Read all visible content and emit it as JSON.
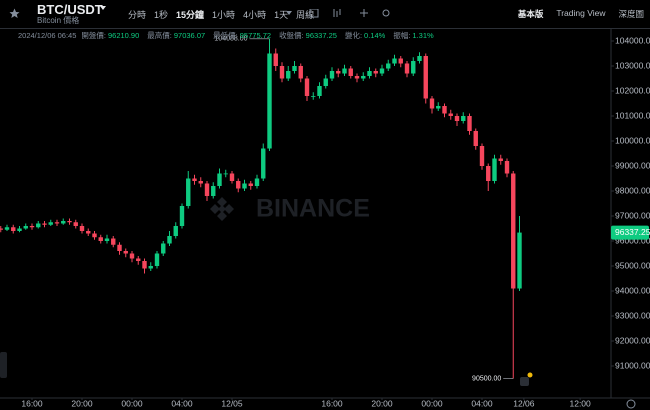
{
  "header": {
    "symbol": "BTC/USDT",
    "subtitle": "Bitcoin 價格",
    "intervals": [
      "分時",
      "1秒",
      "15分鐘",
      "1小時",
      "4小時",
      "1天",
      "周線"
    ],
    "views": [
      "基本版",
      "Trading View",
      "深度圖"
    ]
  },
  "info": {
    "datetime": "2024/12/06 06:45",
    "fields": [
      {
        "label": "開盤價:",
        "value": "96210.90"
      },
      {
        "label": "最高價:",
        "value": "97036.07"
      },
      {
        "label": "最低價:",
        "value": "95775.72"
      },
      {
        "label": "收盤價:",
        "value": "96337.25"
      },
      {
        "label": "變化:",
        "value": "0.14%"
      },
      {
        "label": "振幅:",
        "value": "1.31%"
      }
    ]
  },
  "chart_data": {
    "type": "candlestick",
    "up_color": "#0ecb81",
    "down_color": "#f6465d",
    "watermark": "BINANCE",
    "xlim": [
      -0.12,
      97.48
    ],
    "xticks": [
      {
        "value": 5,
        "label": "16:00"
      },
      {
        "value": 13,
        "label": "20:00"
      },
      {
        "value": 21,
        "label": "00:00"
      },
      {
        "value": 29,
        "label": "04:00"
      },
      {
        "value": 37,
        "label": "12/05"
      },
      {
        "value": 53,
        "label": "16:00"
      },
      {
        "value": 61,
        "label": "20:00"
      },
      {
        "value": 69,
        "label": "00:00"
      },
      {
        "value": 77,
        "label": "04:00"
      },
      {
        "value": 83.7,
        "label": "12/06"
      },
      {
        "value": 92.7,
        "label": "12:00"
      }
    ],
    "ylim": [
      89700,
      104500
    ],
    "yticks": [
      {
        "value": 104000,
        "label": "104000.00"
      },
      {
        "value": 103000,
        "label": "103000.00"
      },
      {
        "value": 102000,
        "label": "102000.00"
      },
      {
        "value": 101000,
        "label": "101000.00"
      },
      {
        "value": 100000,
        "label": "100000.00"
      },
      {
        "value": 99000,
        "label": "99000.00"
      },
      {
        "value": 98000,
        "label": "98000.00"
      },
      {
        "value": 97000,
        "label": "97000.00"
      },
      {
        "value": 96000,
        "label": "96000.00"
      },
      {
        "value": 95000,
        "label": "95000.00"
      },
      {
        "value": 94000,
        "label": "94000.00"
      },
      {
        "value": 93000,
        "label": "93000.00"
      },
      {
        "value": 92000,
        "label": "92000.00"
      },
      {
        "value": 91000,
        "label": "91000.00"
      }
    ],
    "last_price": 96337.25,
    "max_label": {
      "value": 104088,
      "label": "104088.00"
    },
    "min_label": {
      "value": 90500,
      "label": "90500.00"
    },
    "ohlc": [
      [
        96500,
        96600,
        96350,
        96450
      ],
      [
        96450,
        96650,
        96400,
        96550
      ],
      [
        96550,
        96650,
        96300,
        96400
      ],
      [
        96400,
        96600,
        96350,
        96500
      ],
      [
        96500,
        96700,
        96450,
        96600
      ],
      [
        96600,
        96700,
        96450,
        96550
      ],
      [
        96550,
        96800,
        96500,
        96700
      ],
      [
        96700,
        96800,
        96550,
        96650
      ],
      [
        96650,
        96850,
        96600,
        96750
      ],
      [
        96750,
        96850,
        96600,
        96700
      ],
      [
        96700,
        96900,
        96650,
        96800
      ],
      [
        96800,
        96900,
        96650,
        96750
      ],
      [
        96750,
        96850,
        96500,
        96600
      ],
      [
        96600,
        96700,
        96300,
        96400
      ],
      [
        96400,
        96500,
        96200,
        96300
      ],
      [
        96300,
        96400,
        96050,
        96150
      ],
      [
        96150,
        96250,
        95900,
        96000
      ],
      [
        96000,
        96250,
        95900,
        96100
      ],
      [
        96100,
        96200,
        95750,
        95850
      ],
      [
        95850,
        95950,
        95450,
        95600
      ],
      [
        95600,
        95700,
        95350,
        95500
      ],
      [
        95500,
        95600,
        95150,
        95300
      ],
      [
        95300,
        95400,
        95050,
        95200
      ],
      [
        95200,
        95300,
        94700,
        94900
      ],
      [
        94900,
        95150,
        94800,
        95000
      ],
      [
        95000,
        95600,
        94900,
        95500
      ],
      [
        95500,
        96000,
        95400,
        95900
      ],
      [
        95900,
        96400,
        95800,
        96200
      ],
      [
        96200,
        96750,
        96100,
        96600
      ],
      [
        96600,
        97500,
        96500,
        97400
      ],
      [
        97400,
        98800,
        97300,
        98500
      ],
      [
        98500,
        98650,
        98250,
        98400
      ],
      [
        98400,
        98550,
        98150,
        98300
      ],
      [
        98300,
        98400,
        97600,
        97800
      ],
      [
        97800,
        98350,
        97700,
        98200
      ],
      [
        98200,
        98900,
        98100,
        98700
      ],
      [
        98700,
        98850,
        98550,
        98700
      ],
      [
        98700,
        98800,
        98300,
        98400
      ],
      [
        98400,
        98500,
        97950,
        98100
      ],
      [
        98100,
        98450,
        98000,
        98300
      ],
      [
        98300,
        98400,
        98050,
        98200
      ],
      [
        98200,
        98650,
        98100,
        98500
      ],
      [
        98500,
        99900,
        98400,
        99700
      ],
      [
        99700,
        104088,
        99600,
        103500
      ],
      [
        103500,
        103700,
        102800,
        103000
      ],
      [
        103000,
        103150,
        102350,
        102500
      ],
      [
        102500,
        103000,
        102400,
        102800
      ],
      [
        102800,
        103200,
        102700,
        103000
      ],
      [
        103000,
        103100,
        102350,
        102500
      ],
      [
        102500,
        102600,
        101600,
        101800
      ],
      [
        101800,
        101950,
        101650,
        101800
      ],
      [
        101800,
        102350,
        101700,
        102200
      ],
      [
        102200,
        102650,
        102100,
        102500
      ],
      [
        102500,
        102950,
        102400,
        102800
      ],
      [
        102800,
        102900,
        102550,
        102700
      ],
      [
        102700,
        103050,
        102600,
        102900
      ],
      [
        102900,
        103000,
        102500,
        102600
      ],
      [
        102600,
        102700,
        102350,
        102500
      ],
      [
        102500,
        102750,
        102400,
        102600
      ],
      [
        102600,
        102950,
        102500,
        102800
      ],
      [
        102800,
        102900,
        102550,
        102700
      ],
      [
        102700,
        103050,
        102600,
        102900
      ],
      [
        102900,
        103250,
        102800,
        103100
      ],
      [
        103100,
        103450,
        103000,
        103300
      ],
      [
        103300,
        103400,
        102950,
        103100
      ],
      [
        103100,
        103200,
        102550,
        102700
      ],
      [
        102700,
        103350,
        102600,
        103200
      ],
      [
        103200,
        103550,
        103100,
        103400
      ],
      [
        103400,
        103500,
        101500,
        101700
      ],
      [
        101700,
        101800,
        101100,
        101300
      ],
      [
        101300,
        101550,
        101200,
        101400
      ],
      [
        101400,
        101500,
        100950,
        101100
      ],
      [
        101100,
        101250,
        100850,
        101000
      ],
      [
        101000,
        101100,
        100600,
        100800
      ],
      [
        100800,
        101150,
        100700,
        101000
      ],
      [
        101000,
        101100,
        100250,
        100400
      ],
      [
        100400,
        100500,
        99650,
        99800
      ],
      [
        99800,
        99900,
        98850,
        99000
      ],
      [
        99000,
        99100,
        98000,
        98400
      ],
      [
        98400,
        99450,
        98300,
        99300
      ],
      [
        99300,
        99450,
        99050,
        99200
      ],
      [
        99200,
        99300,
        98550,
        98700
      ],
      [
        98700,
        98800,
        90500,
        94100
      ],
      [
        94100,
        97000,
        94000,
        96337.25
      ]
    ]
  }
}
